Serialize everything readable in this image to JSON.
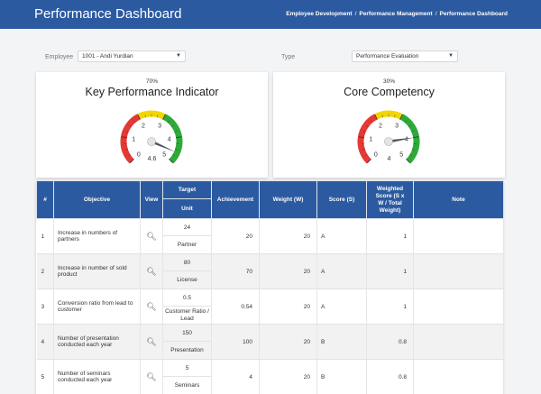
{
  "header": {
    "title": "Performance Dashboard",
    "breadcrumb": [
      "Employee Development",
      "Performance Management",
      "Performance Dashboard"
    ]
  },
  "filters": {
    "employee_label": "Employee",
    "employee_value": "1001 - Andi Yurdian",
    "type_label": "Type",
    "type_value": "Performance Evaluation"
  },
  "gauges": [
    {
      "weight": "70%",
      "title": "Key Performance Indicator",
      "value": 4.6,
      "value_label": "4.6",
      "scale": [
        "0",
        "1",
        "2",
        "3",
        "4",
        "5"
      ]
    },
    {
      "weight": "30%",
      "title": "Core Competency",
      "value": 4,
      "value_label": "4",
      "scale": [
        "0",
        "1",
        "2",
        "3",
        "4",
        "5"
      ]
    }
  ],
  "gauge_colors": {
    "red": "#e53935",
    "yellow": "#f2d600",
    "green": "#2eaa3a",
    "needle": "#4a5562"
  },
  "table": {
    "headers": {
      "idx": "#",
      "objective": "Objective",
      "view": "View",
      "target": "Target",
      "unit": "Unit",
      "achievement": "Achievement",
      "weight": "Weight (W)",
      "score": "Score (S)",
      "weighted": "Weighted Score (S x W / Total Weight)",
      "note": "Note"
    },
    "rows": [
      {
        "idx": "1",
        "objective": "Increase in numbers of partners",
        "target": "24",
        "unit": "Partner",
        "achievement": "20",
        "weight": "20",
        "score": "A",
        "weighted": "1",
        "note": ""
      },
      {
        "idx": "2",
        "objective": "Increase in number of sold product",
        "target": "80",
        "unit": "License",
        "achievement": "70",
        "weight": "20",
        "score": "A",
        "weighted": "1",
        "note": ""
      },
      {
        "idx": "3",
        "objective": "Conversion ratio from lead to customer",
        "target": "0.5",
        "unit": "Customer Ratio / Lead",
        "achievement": "0.54",
        "weight": "20",
        "score": "A",
        "weighted": "1",
        "note": ""
      },
      {
        "idx": "4",
        "objective": "Number of presentation conducted each year",
        "target": "150",
        "unit": "Presentation",
        "achievement": "100",
        "weight": "20",
        "score": "B",
        "weighted": "0.8",
        "note": ""
      },
      {
        "idx": "5",
        "objective": "Number of seminars conducted each year",
        "target": "5",
        "unit": "Seminars",
        "achievement": "4",
        "weight": "20",
        "score": "B",
        "weighted": "0.8",
        "note": ""
      }
    ]
  }
}
